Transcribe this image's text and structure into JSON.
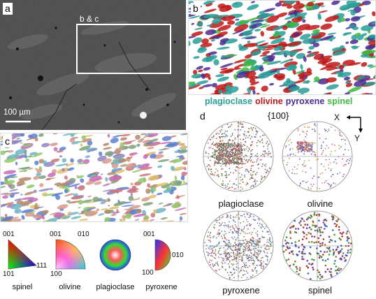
{
  "panels": {
    "a": {
      "label": "a",
      "box_label": "b & c",
      "scale_bar": "100 µm"
    },
    "b": {
      "label": "b"
    },
    "c": {
      "label": "c"
    },
    "d": {
      "label": "d",
      "projection": "{100}",
      "axis_x": "X",
      "axis_y": "Y"
    }
  },
  "phase_legend": [
    {
      "name": "plagioclase",
      "color": "#2a9d96"
    },
    {
      "name": "olivine",
      "color": "#c01818"
    },
    {
      "name": "pyroxene",
      "color": "#4b2c92"
    },
    {
      "name": "spinel",
      "color": "#3fb93f"
    }
  ],
  "pole_figures": [
    {
      "label": "plagioclase"
    },
    {
      "label": "olivine"
    },
    {
      "label": "pyroxene"
    },
    {
      "label": "spinel"
    }
  ],
  "ipf_keys": {
    "spinel": {
      "label": "spinel",
      "v001": "001",
      "v101": "101",
      "v111": "111"
    },
    "olivine": {
      "label": "olivine",
      "v001": "001",
      "v010": "010",
      "v100": "100"
    },
    "plagioclase": {
      "label": "plagioclase"
    },
    "pyroxene": {
      "label": "pyroxene",
      "v001": "001",
      "v010": "010",
      "v100": "100"
    }
  }
}
